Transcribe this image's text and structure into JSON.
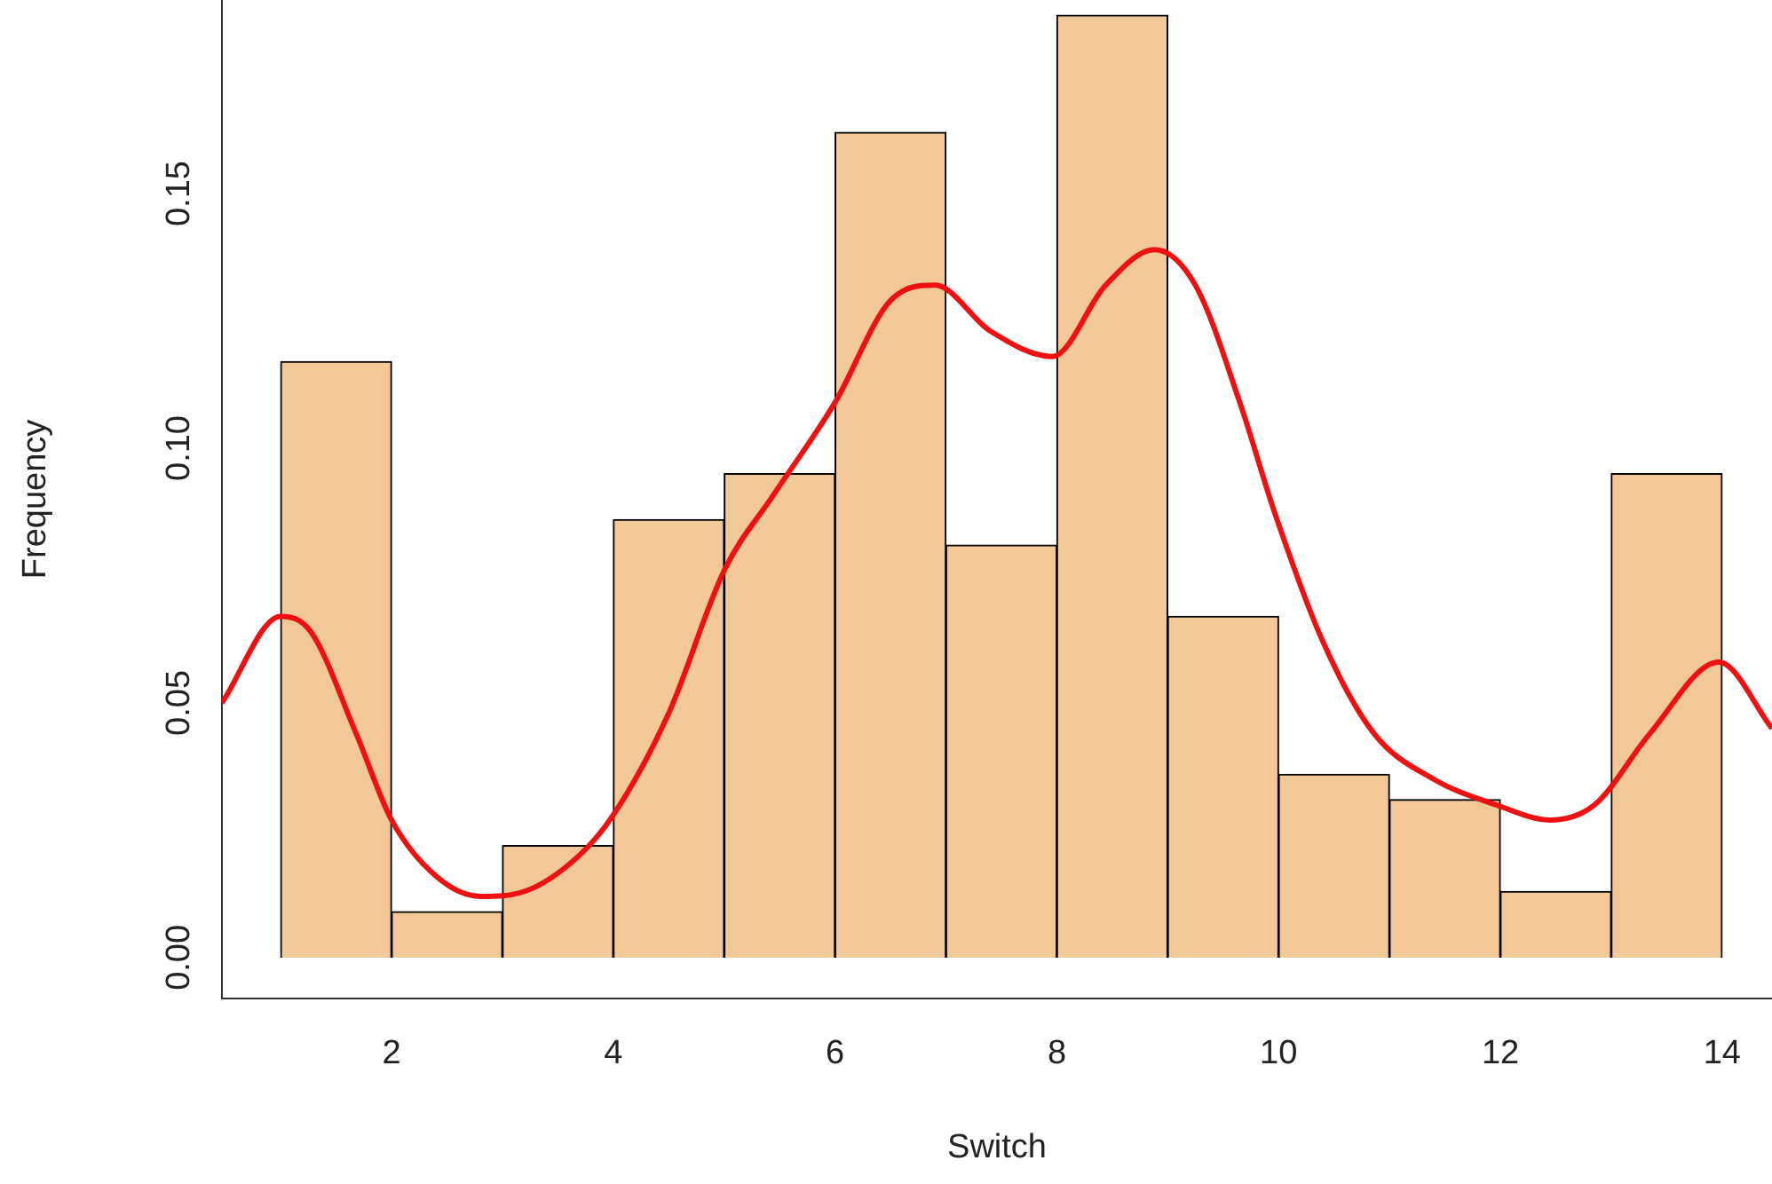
{
  "chart_data": {
    "type": "histogram",
    "xlabel": "Switch",
    "ylabel": "Frequency",
    "bins": [
      1,
      2,
      3,
      4,
      5,
      6,
      7,
      8,
      9,
      10,
      11,
      12,
      13,
      14
    ],
    "series": [
      {
        "color": "#f2c896",
        "values": [
          0.117,
          0.009,
          0.022,
          0.086,
          0.095,
          0.162,
          0.081,
          0.185,
          0.067,
          0.036,
          0.031,
          0.013,
          0.095
        ]
      },
      {
        "type": "line",
        "color": "#ee1111",
        "x": [
          0.47,
          1.0,
          1.27,
          1.68,
          2.0,
          2.4,
          2.8,
          3.2,
          3.69,
          4.0,
          4.5,
          5.0,
          5.45,
          6.0,
          6.5,
          6.9,
          7.4,
          7.96,
          8.44,
          8.88,
          9.25,
          9.65,
          9.97,
          10.4,
          10.86,
          11.4,
          11.96,
          12.45,
          12.85,
          13.35,
          13.97,
          14.45
        ],
        "values": [
          0.05,
          0.067,
          0.064,
          0.044,
          0.027,
          0.016,
          0.012,
          0.013,
          0.02,
          0.028,
          0.048,
          0.076,
          0.091,
          0.109,
          0.129,
          0.132,
          0.123,
          0.118,
          0.132,
          0.139,
          0.132,
          0.109,
          0.087,
          0.062,
          0.044,
          0.035,
          0.03,
          0.027,
          0.03,
          0.044,
          0.058,
          0.045
        ]
      }
    ],
    "xlim": [
      0.47,
      14.45
    ],
    "ylim": [
      -0.008,
      0.188
    ],
    "xticks": [
      2,
      4,
      6,
      8,
      10,
      12,
      14
    ],
    "yticks": [
      {
        "value": 0,
        "label": "0.00"
      },
      {
        "value": 0.05,
        "label": "0.05"
      },
      {
        "value": 0.1,
        "label": "0.10"
      },
      {
        "value": 0.15,
        "label": "0.15"
      }
    ],
    "grid": false,
    "legend": false
  }
}
